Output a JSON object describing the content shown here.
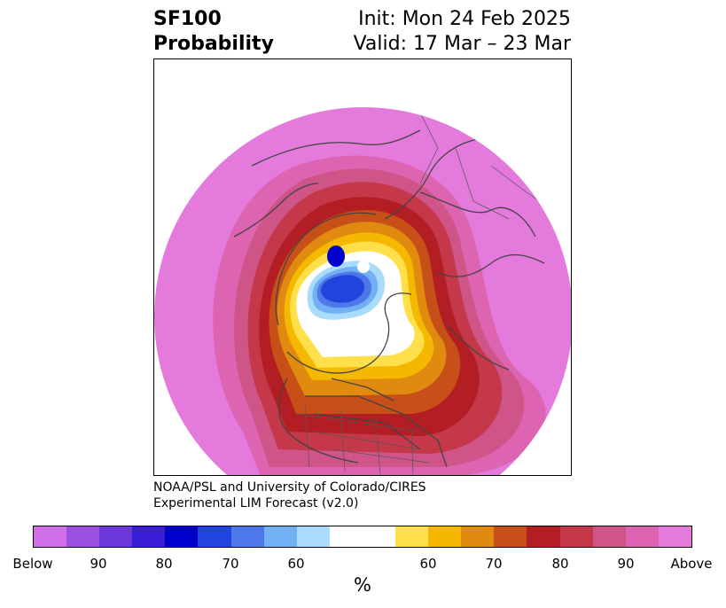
{
  "header": {
    "title_line1": "SF100",
    "title_line2": "Probability",
    "init": "Init: Mon 24 Feb 2025",
    "valid": "Valid: 17 Mar – 23 Mar"
  },
  "credit": {
    "line1": "NOAA/PSL and University of Colorado/CIRES",
    "line2": "Experimental LIM Forecast (v2.0)"
  },
  "colorbar": {
    "colors": [
      "#d070e8",
      "#9b50e2",
      "#6d38dc",
      "#3a1ed6",
      "#0000cc",
      "#2244dd",
      "#4d78ea",
      "#72b0f4",
      "#a9dcfc",
      "#ffffff",
      "#ffe04a",
      "#f5b800",
      "#e08a10",
      "#c65018",
      "#b21e24",
      "#c4384a",
      "#cf5487",
      "#dc64b0",
      "#e47adc"
    ],
    "tick_labels": [
      "Below",
      "90",
      "80",
      "70",
      "60",
      "60",
      "70",
      "80",
      "90",
      "Above"
    ],
    "unit": "%"
  },
  "map": {
    "field": "SF100 probability",
    "projection": "north polar stereographic"
  }
}
